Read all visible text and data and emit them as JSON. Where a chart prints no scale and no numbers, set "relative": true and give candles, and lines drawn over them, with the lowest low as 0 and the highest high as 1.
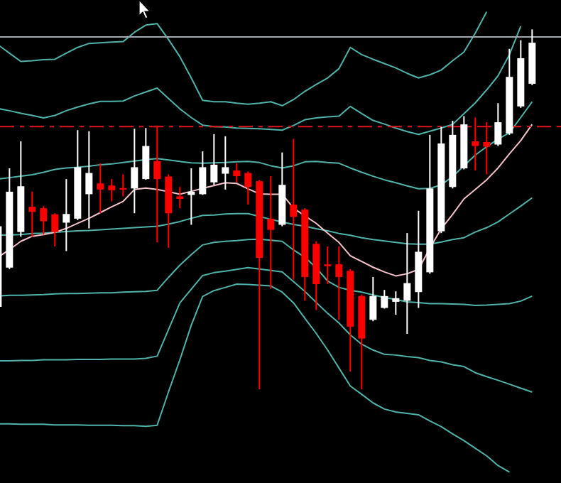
{
  "chart_data": {
    "type": "candlestick",
    "relative": true,
    "categories": [
      null,
      null,
      null,
      null,
      null,
      null,
      null,
      null,
      null,
      null,
      null,
      null,
      null,
      null,
      null,
      null,
      null,
      null,
      null,
      null,
      null,
      null,
      null,
      null,
      null,
      null,
      null,
      null,
      null,
      null,
      null,
      null,
      null,
      null,
      null,
      null,
      null,
      null,
      null,
      null,
      null,
      null,
      null,
      null,
      null,
      null,
      null,
      null
    ],
    "ohlc": [
      [
        0.229,
        0.457,
        0.226,
        0.453
      ],
      [
        0.338,
        0.614,
        0.334,
        0.549
      ],
      [
        0.437,
        0.689,
        0.424,
        0.564
      ],
      [
        0.507,
        0.549,
        0.424,
        0.493
      ],
      [
        0.503,
        0.509,
        0.43,
        0.467
      ],
      [
        0.486,
        0.489,
        0.397,
        0.437
      ],
      [
        0.463,
        0.584,
        0.384,
        0.487
      ],
      [
        0.474,
        0.72,
        0.47,
        0.617
      ],
      [
        0.542,
        0.717,
        0.447,
        0.601
      ],
      [
        0.572,
        0.628,
        0.489,
        0.555
      ],
      [
        0.566,
        0.584,
        0.522,
        0.553
      ],
      [
        0.559,
        0.597,
        0.536,
        0.555
      ],
      [
        0.558,
        0.724,
        0.489,
        0.617
      ],
      [
        0.584,
        0.726,
        0.582,
        0.676
      ],
      [
        0.634,
        0.733,
        0.408,
        0.584
      ],
      [
        0.591,
        0.597,
        0.393,
        0.489
      ],
      [
        0.536,
        0.562,
        0.503,
        0.529
      ],
      [
        0.54,
        0.614,
        0.457,
        0.549
      ],
      [
        0.542,
        0.661,
        0.54,
        0.617
      ],
      [
        0.575,
        0.709,
        0.568,
        0.624
      ],
      [
        0.599,
        0.703,
        0.555,
        0.617
      ],
      [
        0.608,
        0.628,
        0.575,
        0.592
      ],
      [
        0.601,
        0.605,
        0.513,
        0.562
      ],
      [
        0.578,
        0.582,
        0,
        0.365
      ],
      [
        0.474,
        0.592,
        0.279,
        0.443
      ],
      [
        0.457,
        0.658,
        0.453,
        0.568
      ],
      [
        0.513,
        0.696,
        0.305,
        0.479
      ],
      [
        0.499,
        0.503,
        0.246,
        0.312
      ],
      [
        0.404,
        0.411,
        0.22,
        0.292
      ],
      [
        0.347,
        0.397,
        0.292,
        0.342
      ],
      [
        0.347,
        0.397,
        0.193,
        0.312
      ],
      [
        0.329,
        0.334,
        0.049,
        0.174
      ],
      [
        0.259,
        0.263,
        0,
        0.141
      ],
      [
        0.193,
        0.312,
        0.189,
        0.259
      ],
      [
        0.226,
        0.276,
        0.224,
        0.259
      ],
      [
        0.243,
        0.272,
        0.207,
        0.253
      ],
      [
        0.246,
        0.434,
        0.154,
        0.295
      ],
      [
        0.27,
        0.496,
        0.226,
        0.382
      ],
      [
        0.325,
        0.707,
        0.321,
        0.558
      ],
      [
        0.439,
        0.729,
        0.434,
        0.683
      ],
      [
        0.562,
        0.746,
        0.558,
        0.707
      ],
      [
        0.614,
        0.759,
        0.611,
        0.736
      ],
      [
        0.689,
        0.755,
        0.608,
        0.676
      ],
      [
        0.687,
        0.742,
        0.597,
        0.674
      ],
      [
        0.68,
        0.795,
        0.676,
        0.742
      ],
      [
        0.711,
        0.946,
        0.707,
        0.868
      ],
      [
        0.786,
        0.97,
        0.782,
        0.92
      ],
      [
        0.849,
        1,
        0.845,
        0.963
      ]
    ],
    "series": [
      {
        "type": "line",
        "color": "#4fb3aa",
        "values": [
          0.957,
          0.934,
          0.911,
          0.913,
          0.916,
          0.917,
          0.934,
          0.95,
          0.961,
          0.963,
          0.965,
          0.966,
          0.992,
          1.012,
          1.016,
          0.972,
          0.924,
          0.865,
          0.803,
          0.799,
          0.799,
          0.795,
          0.792,
          0.795,
          0.799,
          0.788,
          0.805,
          0.828,
          0.847,
          0.865,
          0.891,
          0.95,
          0.93,
          0.917,
          0.905,
          0.893,
          0.878,
          0.865,
          0.874,
          0.887,
          0.913,
          0.937,
          0.99,
          1.049,
          null,
          null,
          null,
          null
        ]
      },
      {
        "type": "line",
        "color": "#4fb3aa",
        "values": [
          0.78,
          0.774,
          0.767,
          0.761,
          0.754,
          0.761,
          0.774,
          0.784,
          0.793,
          0.8,
          0.8,
          0.801,
          0.815,
          0.826,
          0.837,
          0.808,
          0.779,
          0.755,
          0.734,
          0.73,
          0.729,
          0.726,
          0.725,
          0.724,
          0.722,
          0.72,
          0.733,
          0.749,
          0.754,
          0.757,
          0.759,
          0.786,
          0.766,
          0.747,
          0.737,
          0.726,
          0.716,
          0.708,
          0.717,
          0.726,
          0.736,
          0.766,
          0.796,
          0.832,
          0.871,
          0.93,
          1.009,
          null
        ]
      },
      {
        "type": "line",
        "color": "#4fb3aa",
        "values": [
          0.584,
          0.588,
          0.592,
          0.596,
          0.603,
          0.611,
          0.615,
          0.617,
          0.62,
          0.624,
          0.626,
          0.63,
          0.634,
          0.638,
          0.641,
          0.637,
          0.633,
          0.629,
          0.628,
          0.629,
          0.63,
          0.632,
          0.633,
          0.63,
          0.621,
          0.615,
          0.621,
          0.632,
          0.633,
          0.63,
          0.628,
          0.615,
          0.603,
          0.592,
          0.582,
          0.574,
          0.565,
          0.557,
          0.558,
          0.568,
          0.591,
          0.621,
          0.651,
          0.674,
          0.695,
          0.713,
          0.755,
          0.799
        ]
      },
      {
        "type": "line",
        "color": "#4fb3aa",
        "values": [
          0.428,
          0.429,
          0.43,
          0.433,
          0.434,
          0.436,
          0.438,
          0.44,
          0.441,
          0.443,
          0.445,
          0.447,
          0.449,
          0.451,
          0.453,
          0.459,
          0.466,
          0.475,
          0.483,
          0.484,
          0.487,
          0.488,
          0.488,
          0.48,
          0.472,
          0.465,
          0.458,
          0.453,
          0.446,
          0.44,
          0.433,
          0.428,
          0.421,
          0.416,
          0.412,
          0.408,
          0.404,
          0.403,
          0.403,
          0.409,
          0.416,
          0.421,
          0.437,
          0.449,
          0.465,
          0.487,
          0.509,
          0.532
        ]
      },
      {
        "type": "line",
        "color": "#4fb3aa",
        "values": [
          0.259,
          0.261,
          0.261,
          0.262,
          0.263,
          0.265,
          0.266,
          0.266,
          0.267,
          0.268,
          0.268,
          0.27,
          0.271,
          0.272,
          0.275,
          0.311,
          0.345,
          0.374,
          0.401,
          0.408,
          0.411,
          0.413,
          0.416,
          0.417,
          0.414,
          0.411,
          0.387,
          0.367,
          0.337,
          0.301,
          0.283,
          0.275,
          0.27,
          0.262,
          0.255,
          0.249,
          0.243,
          0.241,
          0.238,
          0.238,
          0.237,
          0.236,
          0.233,
          0.234,
          0.236,
          0.238,
          0.245,
          0.259
        ]
      },
      {
        "type": "line",
        "color": "#4fb3aa",
        "values": [
          0.079,
          0.079,
          0.08,
          0.08,
          0.082,
          0.082,
          0.082,
          0.083,
          0.083,
          0.083,
          0.084,
          0.084,
          0.084,
          0.086,
          0.092,
          0.166,
          0.24,
          0.278,
          0.316,
          0.324,
          0.328,
          0.333,
          0.338,
          0.334,
          0.33,
          0.326,
          0.299,
          0.272,
          0.241,
          0.211,
          0.184,
          0.151,
          0.125,
          0.109,
          0.097,
          0.095,
          0.091,
          0.088,
          0.08,
          0.076,
          0.068,
          0.063,
          0.046,
          0.035,
          0.025,
          0.014,
          0.003,
          -0.008
        ]
      },
      {
        "type": "line",
        "color": "#4fb3aa",
        "values": [
          -0.096,
          -0.096,
          -0.097,
          -0.097,
          -0.097,
          -0.099,
          -0.099,
          -0.099,
          -0.1,
          -0.1,
          -0.1,
          -0.101,
          -0.101,
          -0.103,
          -0.1,
          -0.007,
          0.082,
          0.178,
          0.258,
          0.274,
          0.283,
          0.292,
          0.291,
          0.289,
          0.287,
          0.27,
          0.24,
          0.197,
          0.155,
          0.109,
          0.059,
          0.009,
          -0.014,
          -0.038,
          -0.055,
          -0.063,
          -0.067,
          -0.071,
          -0.088,
          -0.104,
          -0.124,
          -0.143,
          -0.164,
          -0.185,
          -0.212,
          -0.23,
          null,
          null
        ]
      },
      {
        "type": "line",
        "color": "#f4c2c8",
        "values": [
          0.367,
          0.388,
          0.411,
          0.425,
          0.43,
          0.436,
          0.447,
          0.461,
          0.475,
          0.491,
          0.507,
          0.522,
          0.555,
          0.559,
          0.555,
          0.549,
          0.542,
          0.55,
          0.558,
          0.566,
          0.574,
          0.572,
          0.557,
          0.543,
          0.542,
          0.542,
          0.503,
          0.482,
          0.461,
          0.434,
          0.408,
          0.371,
          0.355,
          0.339,
          0.326,
          0.315,
          0.321,
          0.333,
          0.392,
          0.446,
          0.486,
          0.529,
          0.555,
          0.582,
          0.615,
          0.654,
          0.691,
          0.736
        ]
      }
    ],
    "ref_lines": [
      {
        "axis": "y",
        "value": 0.73,
        "color": "#e0141e",
        "line_style": "dashed"
      },
      {
        "axis": "y",
        "value": 0.979,
        "color": "#a0a8b0",
        "line_style": "solid"
      }
    ]
  }
}
